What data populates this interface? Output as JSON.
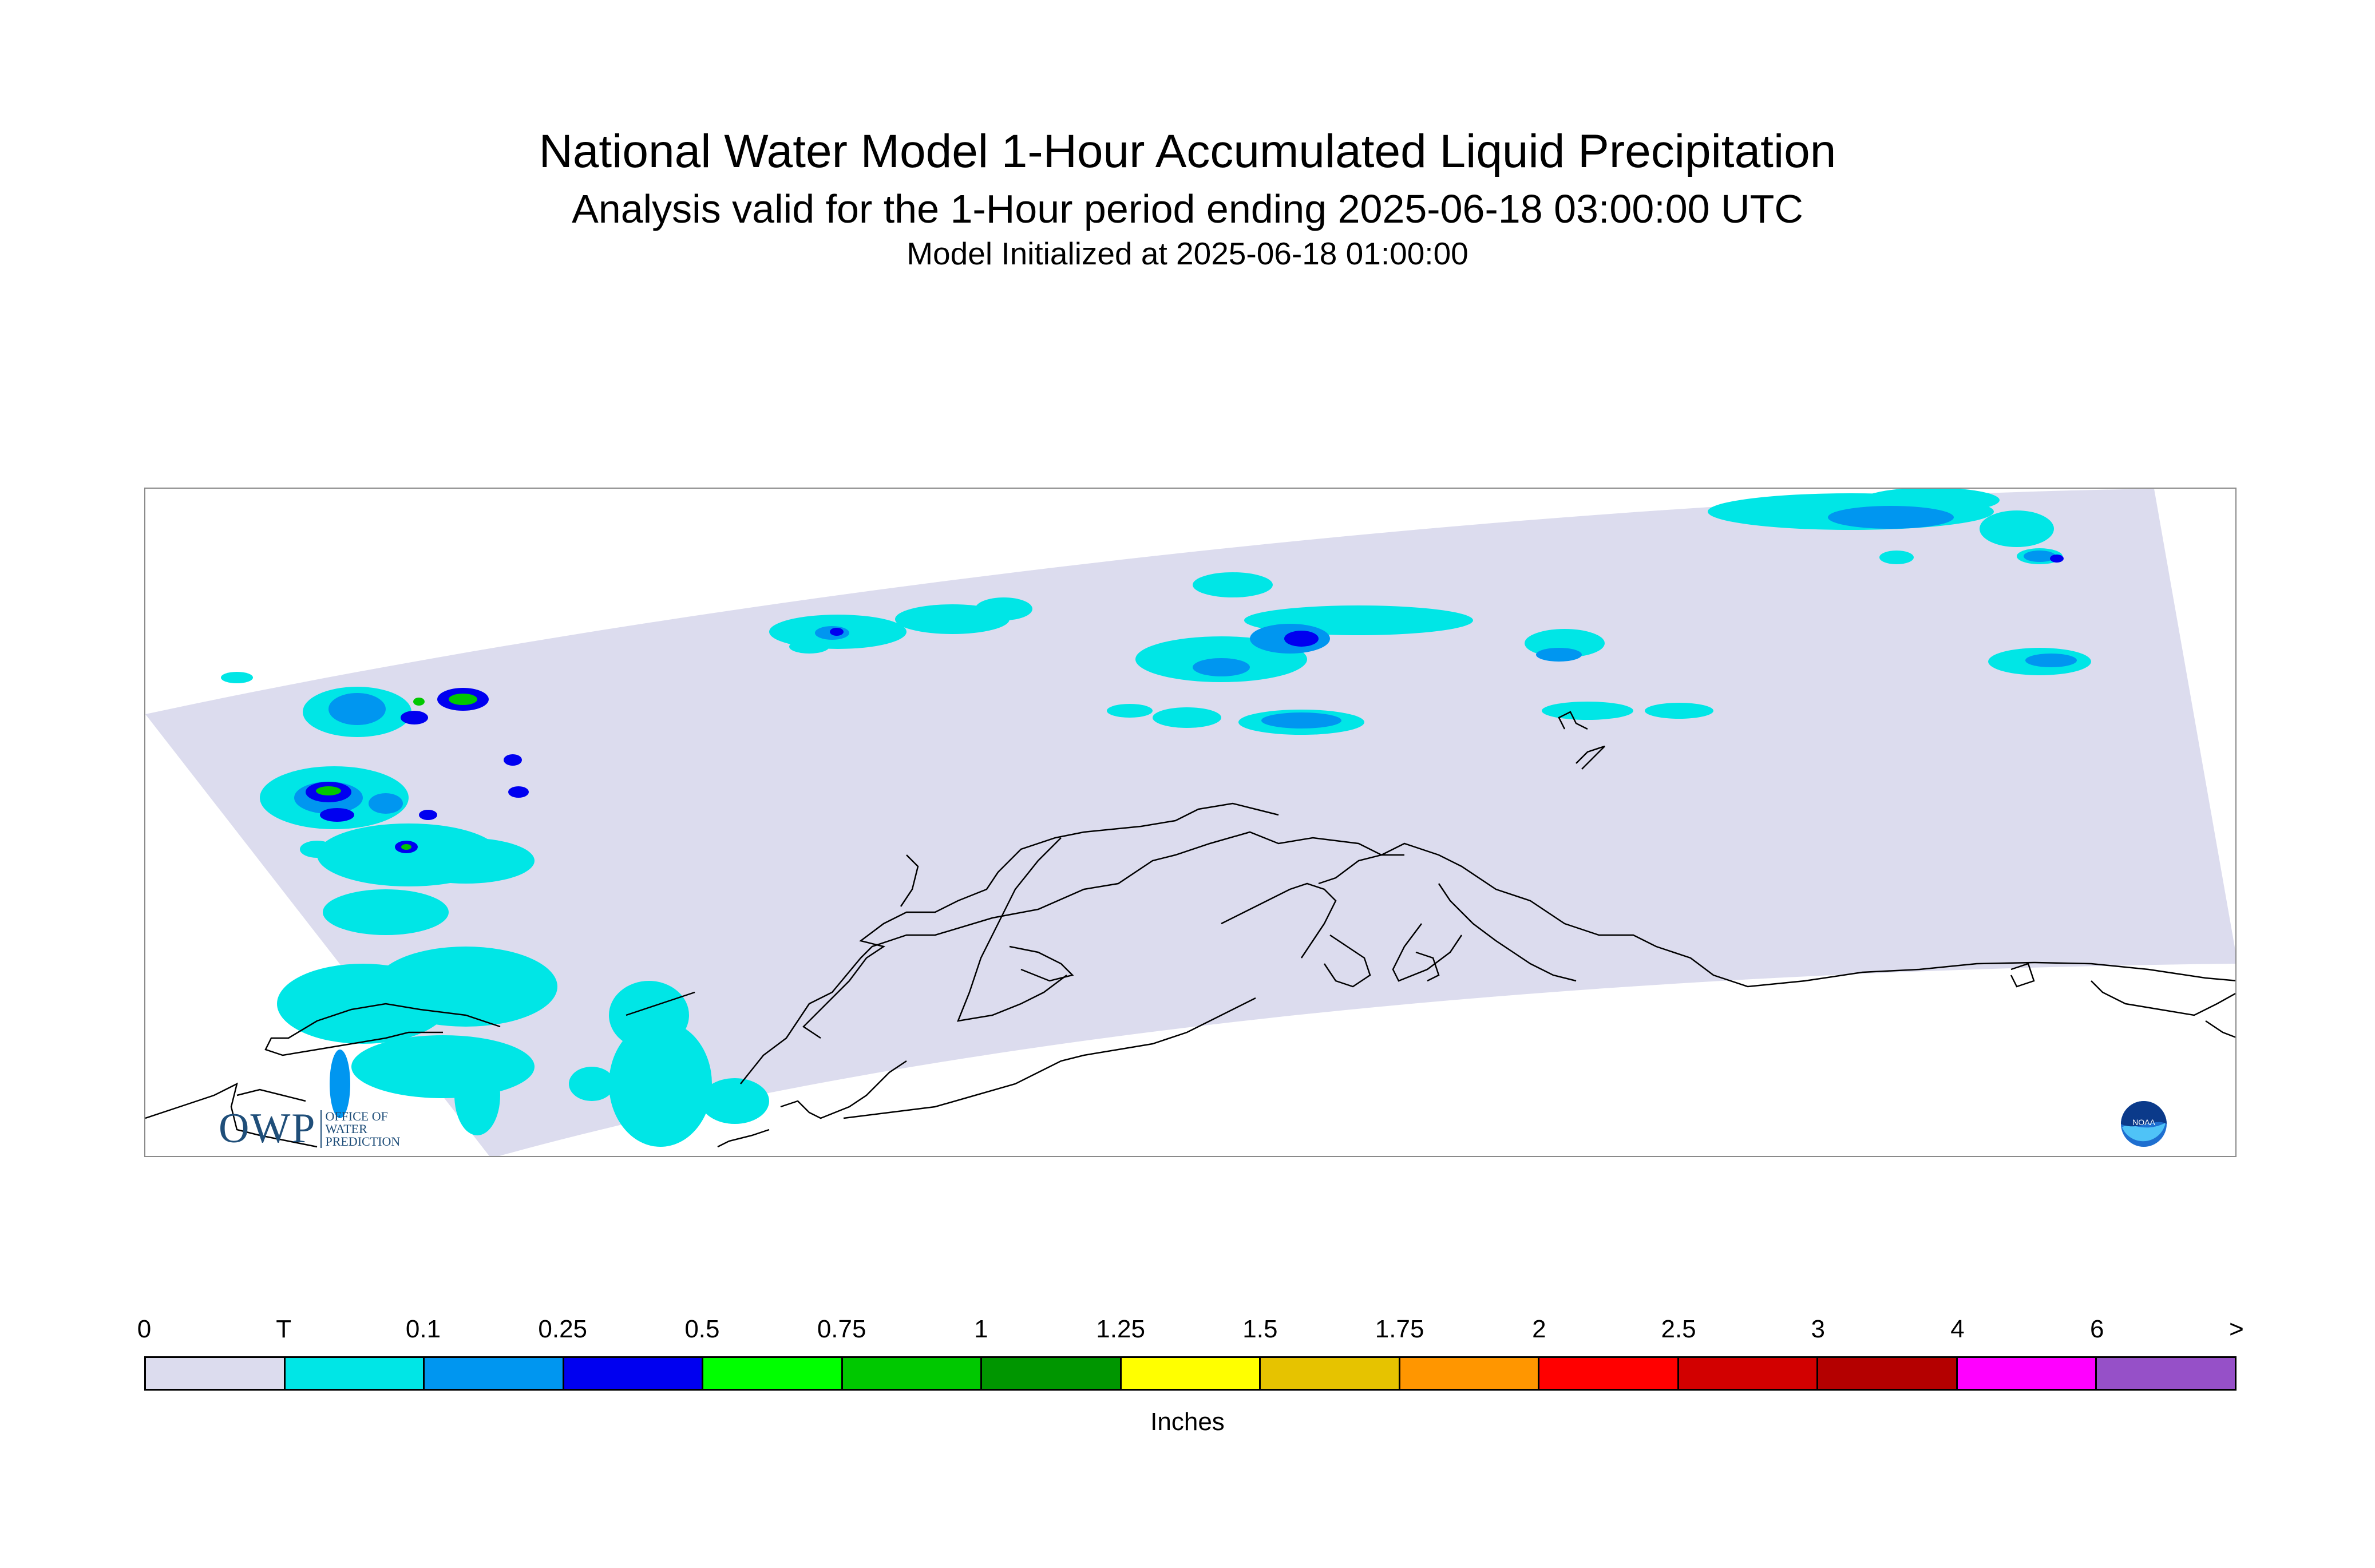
{
  "titles": {
    "main": "National Water Model 1-Hour Accumulated Liquid Precipitation",
    "sub": "Analysis valid for the 1-Hour period ending 2025-06-18 03:00:00 UTC",
    "init": "Model Initialized at 2025-06-18 01:00:00"
  },
  "legend": {
    "ticks": [
      "0",
      "T",
      "0.1",
      "0.25",
      "0.5",
      "0.75",
      "1",
      "1.25",
      "1.5",
      "1.75",
      "2",
      "2.5",
      "3",
      "4",
      "6",
      ">"
    ],
    "colors": [
      "#dcdcee",
      "#00e6e6",
      "#0096f0",
      "#0000f0",
      "#00ff00",
      "#00c800",
      "#009600",
      "#ffff00",
      "#e6c300",
      "#ff9600",
      "#ff0000",
      "#d20000",
      "#b40000",
      "#ff00ff",
      "#9650c8"
    ],
    "units": "Inches"
  },
  "logos": {
    "owp_main": "OWP",
    "owp_line1": "OFFICE OF",
    "owp_line2": "WATER",
    "owp_line3": "PREDICTION",
    "noaa_text": "NOAA"
  },
  "map": {
    "domain_color": "#dcdcee",
    "coastline_color": "#000000"
  }
}
